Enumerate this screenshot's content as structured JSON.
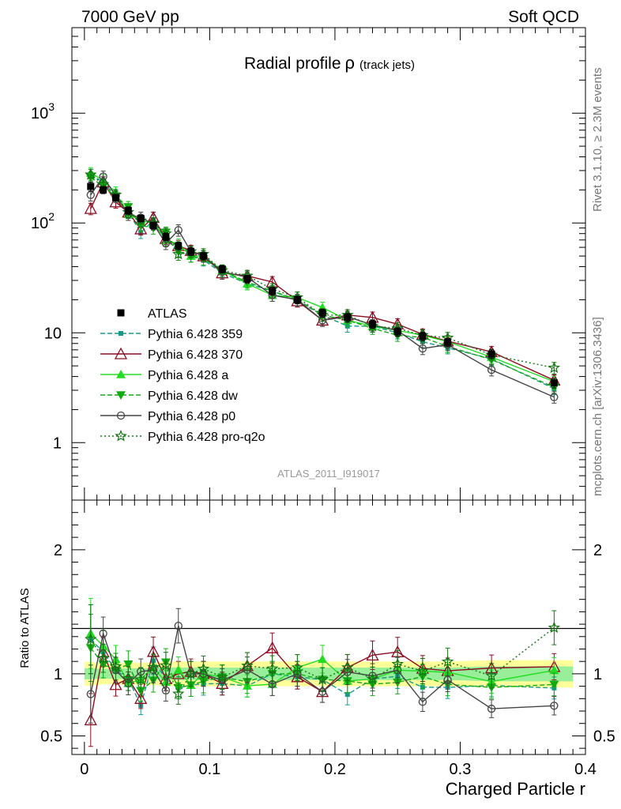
{
  "header": {
    "left": "7000 GeV pp",
    "right": "Soft QCD"
  },
  "side_labels": {
    "top": "Rivet 3.1.10, ≥ 2.3M events",
    "bottom": "mcplots.cern.ch [arXiv:1306.3436]"
  },
  "chart_data": [
    {
      "type": "line",
      "role": "main",
      "title": "Radial profile",
      "title_symbol": "ρ",
      "title_suffix": "(track jets)",
      "watermark": "ATLAS_2011_I919017",
      "yscale": "log",
      "ylim": [
        0.3,
        6000
      ],
      "xlim": [
        -0.01,
        0.4
      ],
      "ytick_labels": [
        "1",
        "10",
        "10",
        "10"
      ],
      "ytick_exponents": [
        "",
        "",
        "2",
        "3"
      ],
      "x": [
        0.005,
        0.015,
        0.025,
        0.035,
        0.045,
        0.055,
        0.065,
        0.075,
        0.085,
        0.095,
        0.11,
        0.13,
        0.15,
        0.17,
        0.19,
        0.21,
        0.23,
        0.25,
        0.27,
        0.29,
        0.325,
        0.375
      ],
      "data": {
        "name": "ATLAS",
        "y": [
          215,
          200,
          170,
          130,
          110,
          95,
          75,
          62,
          55,
          50,
          38,
          31,
          24,
          20,
          15.2,
          13.8,
          12,
          10.2,
          9.3,
          8.2,
          6.4,
          3.5
        ],
        "err": [
          20,
          15,
          12,
          10,
          8,
          7,
          6,
          5,
          4.5,
          4,
          3,
          2.5,
          2,
          1.6,
          1.3,
          1.2,
          1.0,
          0.9,
          0.8,
          0.7,
          0.6,
          0.35
        ]
      },
      "series": [
        {
          "name": "Pythia 6.428 359",
          "color": "#169b8a",
          "dash": "6,3",
          "marker": "square",
          "y": [
            275,
            235,
            175,
            125,
            82,
            105,
            72,
            55,
            50,
            46,
            35,
            28,
            24,
            19.5,
            14.5,
            11.5,
            11.5,
            10,
            8.3,
            7.3,
            5.8,
            3.1
          ]
        },
        {
          "name": "Pythia 6.428 370",
          "color": "#8b0d22",
          "dash": "",
          "marker": "triangle-open",
          "y": [
            135,
            235,
            155,
            125,
            88,
            112,
            72,
            62,
            56,
            50,
            35,
            33,
            29,
            19.5,
            13,
            14.5,
            13.8,
            12,
            9.7,
            8.4,
            6.7,
            3.7
          ]
        },
        {
          "name": "Pythia 6.428 a",
          "color": "#22dd22",
          "dash": "",
          "marker": "triangle",
          "y": [
            285,
            245,
            190,
            120,
            105,
            100,
            70,
            64,
            50,
            50,
            37,
            28,
            22,
            21,
            17,
            13,
            11.5,
            10.5,
            9.5,
            8.3,
            6,
            3.6
          ]
        },
        {
          "name": "Pythia 6.428 dw",
          "color": "#11aa11",
          "dash": "6,3",
          "marker": "triangle-down",
          "y": [
            260,
            215,
            175,
            140,
            95,
            90,
            82,
            55,
            50,
            47,
            37,
            29,
            24,
            20,
            14.5,
            13,
            11,
            9.5,
            9.1,
            7.5,
            5.7,
            3.2
          ]
        },
        {
          "name": "Pythia 6.428 p0",
          "color": "#444444",
          "dash": "",
          "marker": "circle-open",
          "y": [
            180,
            265,
            175,
            120,
            112,
            98,
            65,
            86,
            55,
            50,
            36,
            32,
            22,
            20,
            13,
            14,
            11.8,
            10.5,
            7.2,
            7.8,
            4.6,
            2.6
          ]
        },
        {
          "name": "Pythia 6.428 pro-q2o",
          "color": "#117711",
          "dash": "2,3",
          "marker": "star",
          "y": [
            275,
            225,
            180,
            125,
            105,
            100,
            80,
            52,
            55,
            52,
            37,
            33,
            25,
            21,
            14.5,
            14.5,
            11.5,
            11,
            9.5,
            9,
            6.3,
            4.8
          ]
        }
      ]
    },
    {
      "type": "line",
      "role": "ratio",
      "ylabel": "Ratio to ATLAS",
      "xlabel": "Charged Particle r",
      "ylim": [
        0.35,
        2.4
      ],
      "xlim": [
        -0.01,
        0.4
      ],
      "yticks": [
        0.5,
        1,
        2
      ],
      "ytick_labels": [
        "0.5",
        "1",
        "2"
      ],
      "xticks": [
        0,
        0.1,
        0.2,
        0.3,
        0.4
      ],
      "xtick_labels": [
        "0",
        "0.1",
        "0.2",
        "0.3",
        "0.4"
      ],
      "band_stat": [
        0.045,
        0.04,
        0.04,
        0.045,
        0.045,
        0.045,
        0.05,
        0.05,
        0.05,
        0.05,
        0.05,
        0.05,
        0.05,
        0.05,
        0.05,
        0.05,
        0.05,
        0.05,
        0.05,
        0.05,
        0.06,
        0.06
      ],
      "band_total": [
        0.1,
        0.085,
        0.085,
        0.09,
        0.09,
        0.09,
        0.1,
        0.1,
        0.1,
        0.1,
        0.1,
        0.1,
        0.1,
        0.1,
        0.1,
        0.1,
        0.1,
        0.1,
        0.1,
        0.1,
        0.11,
        0.11
      ]
    }
  ]
}
